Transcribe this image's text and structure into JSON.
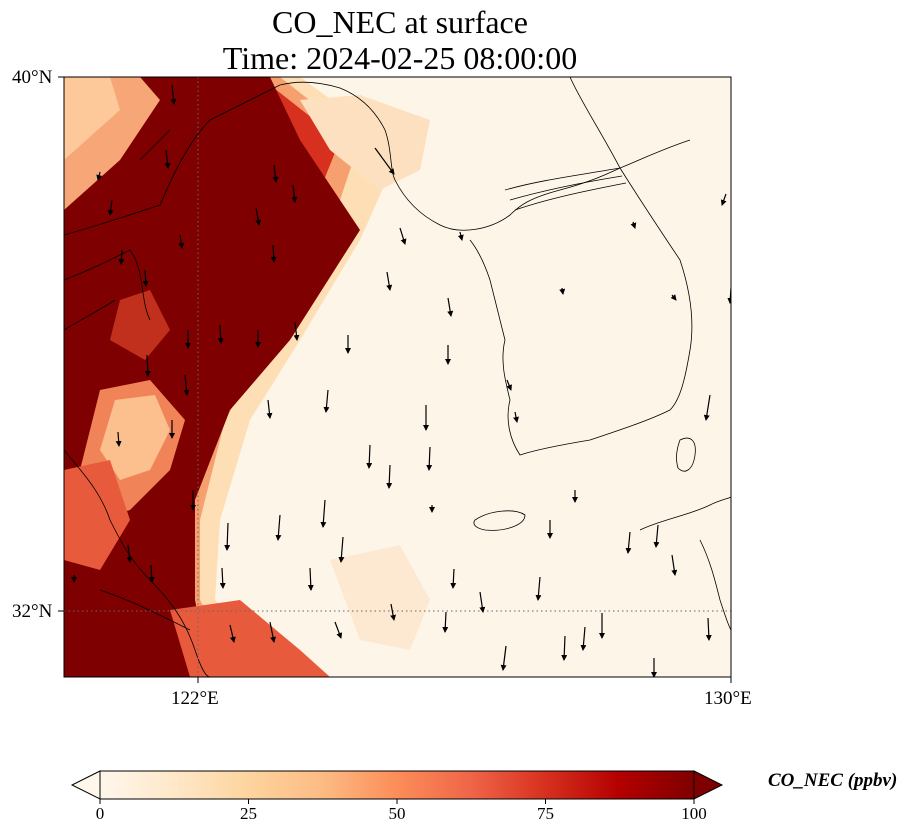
{
  "title": {
    "line1": "CO_NEC at surface",
    "line2": "Time: 2024-02-25 08:00:00"
  },
  "axes": {
    "lat_labels": [
      "40°N",
      "32°N"
    ],
    "lon_labels": [
      "122°E",
      "130°E"
    ]
  },
  "extent": {
    "lon_min": 120,
    "lon_max": 130,
    "lat_min": 31,
    "lat_max": 40
  },
  "gridlines": {
    "lon": 122,
    "lat": 32,
    "style": "dotted"
  },
  "colorbar": {
    "label": "CO_NEC (ppbv)",
    "min": 0,
    "max": 100,
    "ticks": [
      "0",
      "25",
      "50",
      "75",
      "100"
    ],
    "extend": "both",
    "colormap": "OrRd",
    "colors": [
      "#fff7ec",
      "#fee8c8",
      "#fdd49e",
      "#fdbb84",
      "#fc8d59",
      "#ef6548",
      "#d7301f",
      "#b30000",
      "#7f0000"
    ]
  },
  "wind_vectors": "black arrows, predominantly pointing south"
}
